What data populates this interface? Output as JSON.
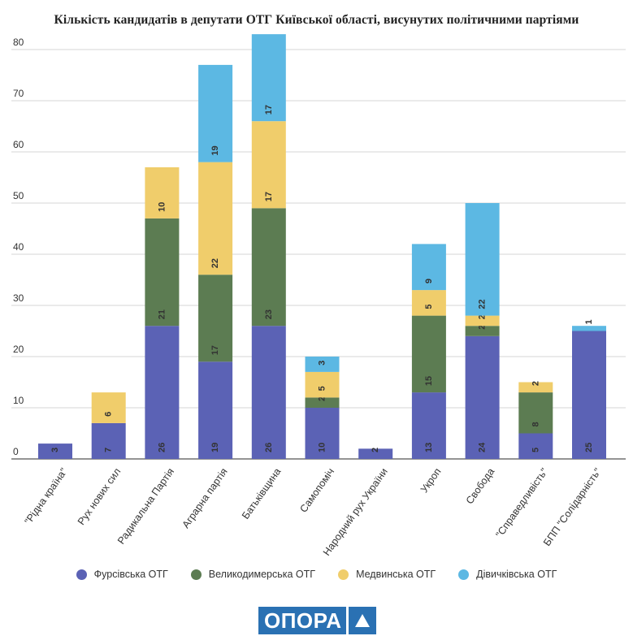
{
  "chart_data": {
    "type": "bar",
    "stacked": true,
    "title": "Кількість кандидатів в депутати ОТГ Київської області, висунутих політичними партіями",
    "xlabel": "",
    "ylabel": "",
    "ylim": [
      0,
      85
    ],
    "yticks": [
      0,
      10,
      20,
      30,
      40,
      50,
      60,
      70,
      80
    ],
    "grid": true,
    "legend_position": "bottom",
    "categories": [
      "\"Рідна країна\"",
      "Рух нових сил",
      "Радикальна Партія",
      "Аграрна партія",
      "Батьківщина",
      "Самопоміч",
      "Народний рух України",
      "Укроп",
      "Свобода",
      "\"Справедливість\"",
      "БПП \"Солідарність\""
    ],
    "series": [
      {
        "name": "Фурсівська ОТГ",
        "color": "#5b62b5",
        "values": [
          3,
          7,
          26,
          19,
          26,
          10,
          2,
          13,
          24,
          5,
          25
        ]
      },
      {
        "name": "Великодимерська ОТГ",
        "color": "#5c7c52",
        "values": [
          0,
          0,
          21,
          17,
          23,
          2,
          0,
          15,
          2,
          8,
          0
        ]
      },
      {
        "name": "Медвинська ОТГ",
        "color": "#f0cd6b",
        "values": [
          0,
          6,
          10,
          22,
          17,
          5,
          0,
          5,
          2,
          2,
          0
        ]
      },
      {
        "name": "Дівичківська ОТГ",
        "color": "#5cb8e3",
        "values": [
          0,
          0,
          0,
          19,
          17,
          3,
          0,
          9,
          22,
          0,
          1
        ]
      }
    ]
  },
  "logo": {
    "text": "ОПОРА"
  }
}
